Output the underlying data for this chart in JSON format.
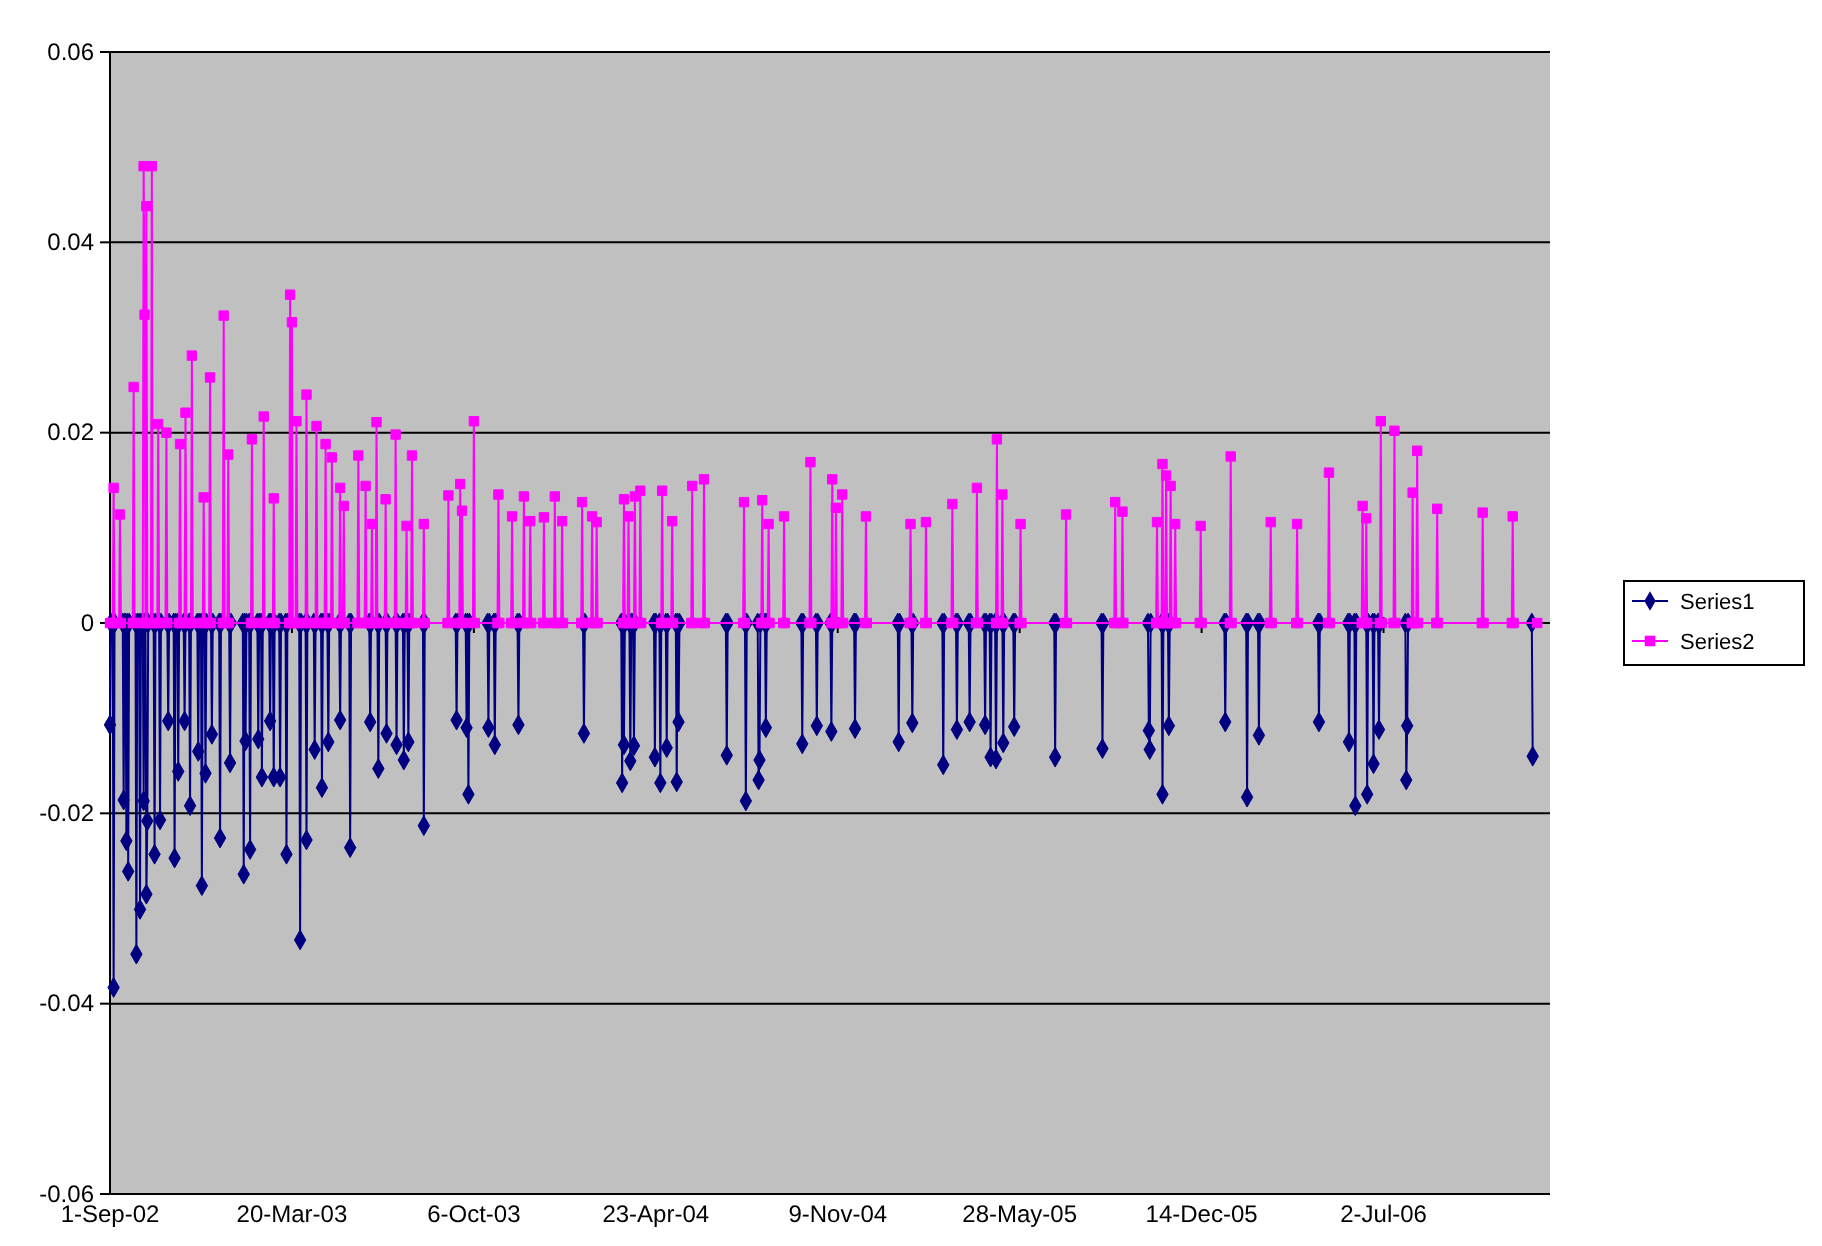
{
  "chart_data": {
    "type": "line",
    "xlim": [
      "2002-09-01",
      "2007-01-01"
    ],
    "ylim": [
      -0.06,
      0.06
    ],
    "xticks": [
      {
        "value": "2002-09-01",
        "label": "1-Sep-02"
      },
      {
        "value": "2003-03-20",
        "label": "20-Mar-03"
      },
      {
        "value": "2003-10-06",
        "label": "6-Oct-03"
      },
      {
        "value": "2004-04-23",
        "label": "23-Apr-04"
      },
      {
        "value": "2004-11-09",
        "label": "9-Nov-04"
      },
      {
        "value": "2005-05-28",
        "label": "28-May-05"
      },
      {
        "value": "2005-12-14",
        "label": "14-Dec-05"
      },
      {
        "value": "2006-07-02",
        "label": "2-Jul-06"
      }
    ],
    "yticks": [
      -0.06,
      -0.04,
      -0.02,
      0,
      0.02,
      0.04,
      0.06
    ],
    "grid": "y",
    "legend": "right",
    "series": [
      {
        "name": "Series1",
        "color": "#000080",
        "marker": "diamond",
        "x": [
          "2002-09-01",
          "2002-09-02",
          "2002-09-04",
          "2002-09-05",
          "2002-09-06",
          "2002-09-15",
          "2002-09-16",
          "2002-09-17",
          "2002-09-18",
          "2002-09-19",
          "2002-09-20",
          "2002-09-21",
          "2002-09-22",
          "2002-09-29",
          "2002-09-30",
          "2002-10-01",
          "2002-10-03",
          "2002-10-04",
          "2002-10-05",
          "2002-10-07",
          "2002-10-08",
          "2002-10-09",
          "2002-10-10",
          "2002-10-11",
          "2002-10-12",
          "2002-10-13",
          "2002-10-19",
          "2002-10-20",
          "2002-10-21",
          "2002-10-25",
          "2002-10-26",
          "2002-10-27",
          "2002-11-03",
          "2002-11-04",
          "2002-11-05",
          "2002-11-10",
          "2002-11-11",
          "2002-11-12",
          "2002-11-14",
          "2002-11-15",
          "2002-11-16",
          "2002-11-21",
          "2002-11-22",
          "2002-11-23",
          "2002-11-27",
          "2002-11-28",
          "2002-11-29",
          "2002-12-06",
          "2002-12-07",
          "2002-12-08",
          "2002-12-10",
          "2002-12-11",
          "2002-12-12",
          "2002-12-14",
          "2002-12-15",
          "2002-12-16",
          "2002-12-21",
          "2002-12-22",
          "2002-12-23",
          "2002-12-30",
          "2002-12-31",
          "2003-01-01",
          "2003-01-10",
          "2003-01-11",
          "2003-01-12",
          "2003-01-25",
          "2003-01-26",
          "2003-01-27",
          "2003-01-28",
          "2003-01-29",
          "2003-02-01",
          "2003-02-02",
          "2003-02-03",
          "2003-02-10",
          "2003-02-11",
          "2003-02-12",
          "2003-02-14",
          "2003-02-15",
          "2003-02-16",
          "2003-02-23",
          "2003-02-24",
          "2003-02-25",
          "2003-02-27",
          "2003-02-28",
          "2003-03-01",
          "2003-03-06",
          "2003-03-07",
          "2003-03-08",
          "2003-03-13",
          "2003-03-14",
          "2003-03-15",
          "2003-03-28",
          "2003-03-29",
          "2003-03-30",
          "2003-04-04",
          "2003-04-05",
          "2003-04-06",
          "2003-04-13",
          "2003-04-14",
          "2003-04-15",
          "2003-04-21",
          "2003-04-22",
          "2003-04-23",
          "2003-04-28",
          "2003-04-29",
          "2003-04-30",
          "2003-05-11",
          "2003-05-12",
          "2003-05-13",
          "2003-05-22",
          "2003-05-23",
          "2003-05-24",
          "2003-06-13",
          "2003-06-14",
          "2003-06-15",
          "2003-06-22",
          "2003-06-23",
          "2003-06-24",
          "2003-07-01",
          "2003-07-02",
          "2003-07-03",
          "2003-07-12",
          "2003-07-13",
          "2003-07-14",
          "2003-07-20",
          "2003-07-21",
          "2003-07-22",
          "2003-07-25",
          "2003-07-26",
          "2003-07-27",
          "2003-08-11",
          "2003-08-12",
          "2003-08-13",
          "2003-09-16",
          "2003-09-17",
          "2003-09-18",
          "2003-09-27",
          "2003-09-28",
          "2003-09-29",
          "2003-09-30",
          "2003-10-01",
          "2003-10-21",
          "2003-10-22",
          "2003-10-23",
          "2003-10-28",
          "2003-10-29",
          "2003-10-30",
          "2003-11-23",
          "2003-11-24",
          "2003-11-25",
          "2004-02-03",
          "2004-02-04",
          "2004-02-05",
          "2004-03-16",
          "2004-03-17",
          "2004-03-18",
          "2004-03-19",
          "2004-03-20",
          "2004-03-25",
          "2004-03-26",
          "2004-03-27",
          "2004-03-29",
          "2004-03-30",
          "2004-03-31",
          "2004-04-21",
          "2004-04-22",
          "2004-04-23",
          "2004-04-27",
          "2004-04-28",
          "2004-04-29",
          "2004-05-04",
          "2004-05-05",
          "2004-05-06",
          "2004-05-15",
          "2004-05-16",
          "2004-05-17",
          "2004-05-18",
          "2004-05-19",
          "2004-07-09",
          "2004-07-10",
          "2004-07-11",
          "2004-07-30",
          "2004-07-31",
          "2004-08-01",
          "2004-08-13",
          "2004-08-14",
          "2004-08-15",
          "2004-08-16",
          "2004-08-21",
          "2004-08-22",
          "2004-08-23",
          "2004-09-30",
          "2004-10-01",
          "2004-10-02",
          "2004-10-16",
          "2004-10-17",
          "2004-10-18",
          "2004-11-01",
          "2004-11-02",
          "2004-11-03",
          "2004-11-27",
          "2004-11-28",
          "2004-11-29",
          "2005-01-14",
          "2005-01-15",
          "2005-01-16",
          "2005-01-29",
          "2005-01-30",
          "2005-01-31",
          "2005-03-04",
          "2005-03-05",
          "2005-03-06",
          "2005-03-19",
          "2005-03-20",
          "2005-03-21",
          "2005-04-02",
          "2005-04-03",
          "2005-04-04",
          "2005-04-19",
          "2005-04-20",
          "2005-04-21",
          "2005-04-25",
          "2005-04-26",
          "2005-04-27",
          "2005-05-01",
          "2005-05-02",
          "2005-05-03",
          "2005-05-09",
          "2005-05-10",
          "2005-05-11",
          "2005-05-21",
          "2005-05-22",
          "2005-05-23",
          "2005-07-05",
          "2005-07-06",
          "2005-07-07",
          "2005-08-26",
          "2005-08-27",
          "2005-08-28",
          "2005-10-16",
          "2005-10-17",
          "2005-10-18",
          "2005-10-19",
          "2005-10-31",
          "2005-11-01",
          "2005-11-02",
          "2005-11-07",
          "2005-11-08",
          "2005-11-09",
          "2006-01-08",
          "2006-01-09",
          "2006-01-10",
          "2006-02-01",
          "2006-02-02",
          "2006-02-03",
          "2006-02-14",
          "2006-02-15",
          "2006-02-16",
          "2006-04-21",
          "2006-04-22",
          "2006-04-23",
          "2006-05-24",
          "2006-05-25",
          "2006-05-26",
          "2006-05-31",
          "2006-06-01",
          "2006-06-02",
          "2006-06-13",
          "2006-06-14",
          "2006-06-15",
          "2006-06-20",
          "2006-06-21",
          "2006-06-22",
          "2006-06-26",
          "2006-06-27",
          "2006-06-28",
          "2006-07-26",
          "2006-07-27",
          "2006-07-28",
          "2006-07-29",
          "2006-12-12",
          "2006-12-13"
        ],
        "values": [
          -0.0107,
          0,
          0,
          -0.0383,
          0,
          0,
          -0.0186,
          0,
          0,
          -0.0229,
          0,
          -0.0261,
          0,
          0,
          -0.0348,
          0,
          0,
          -0.0301,
          0,
          0,
          -0.0187,
          0,
          0,
          -0.0285,
          -0.0208,
          0,
          0,
          -0.0243,
          0,
          0,
          -0.0207,
          0,
          0,
          -0.0103,
          0,
          0,
          -0.0247,
          0,
          0,
          -0.0156,
          0,
          0,
          -0.0103,
          0,
          0,
          -0.0192,
          0,
          0,
          -0.0135,
          0,
          0,
          -0.0276,
          0,
          0,
          -0.0158,
          0,
          0,
          -0.0117,
          0,
          0,
          -0.0226,
          0,
          0,
          -0.0147,
          0,
          0,
          -0.0264,
          0,
          -0.0124,
          0,
          0,
          -0.0238,
          0,
          0,
          -0.0122,
          0,
          0,
          -0.0162,
          0,
          0,
          -0.0103,
          0,
          0,
          -0.0162,
          0,
          0,
          -0.0162,
          0,
          0,
          -0.0243,
          0,
          0,
          -0.0333,
          0,
          0,
          -0.0228,
          0,
          0,
          -0.0133,
          0,
          0,
          -0.0173,
          0,
          0,
          -0.0125,
          0,
          0,
          -0.0102,
          0,
          0,
          -0.0236,
          0,
          0,
          -0.0104,
          0,
          0,
          -0.0153,
          0,
          0,
          -0.0116,
          0,
          0,
          -0.0128,
          0,
          0,
          -0.0144,
          0,
          0,
          -0.0125,
          0,
          0,
          -0.0213,
          0,
          0,
          -0.0102,
          0,
          0,
          -0.011,
          0,
          -0.018,
          0,
          0,
          -0.011,
          0,
          0,
          -0.0128,
          0,
          0,
          -0.0107,
          0,
          0,
          -0.0116,
          0,
          0,
          -0.0168,
          0,
          -0.0128,
          0,
          0,
          -0.0145,
          0,
          0,
          -0.0129,
          0,
          0,
          -0.0141,
          0,
          0,
          -0.0168,
          0,
          0,
          -0.0131,
          0,
          0,
          -0.0167,
          0,
          -0.0104,
          0,
          0,
          -0.0139,
          0,
          0,
          -0.0187,
          0,
          0,
          -0.0165,
          -0.0144,
          0,
          0,
          -0.011,
          0,
          0,
          -0.0127,
          0,
          0,
          -0.0108,
          0,
          0,
          -0.0114,
          0,
          0,
          -0.0111,
          0,
          0,
          -0.0125,
          0,
          0,
          -0.0105,
          0,
          0,
          -0.0149,
          0,
          0,
          -0.0112,
          0,
          0,
          -0.0104,
          0,
          0,
          -0.0107,
          0,
          0,
          -0.0141,
          0,
          0,
          -0.0143,
          0,
          0,
          -0.0126,
          0,
          0,
          -0.0109,
          0,
          0,
          -0.0141,
          0,
          0,
          -0.0132,
          0,
          0,
          -0.0113,
          -0.0133,
          0,
          0,
          -0.018,
          0,
          0,
          -0.0108,
          0,
          0,
          -0.0104,
          0,
          0,
          -0.0183,
          0,
          0,
          -0.0118,
          0,
          0,
          -0.0104,
          0,
          0,
          -0.0125,
          0,
          0,
          -0.0192,
          0,
          0,
          -0.018,
          0,
          0,
          -0.0148,
          0,
          0,
          -0.0112,
          0,
          0,
          -0.0165,
          -0.0108,
          0,
          0,
          -0.014
        ]
      },
      {
        "name": "Series2",
        "color": "#ff00ff",
        "marker": "square",
        "x": [
          "2002-09-01",
          "2002-09-04",
          "2002-09-05",
          "2002-09-06",
          "2002-09-11",
          "2002-09-12",
          "2002-09-13",
          "2002-09-26",
          "2002-09-27",
          "2002-09-28",
          "2002-10-07",
          "2002-10-08",
          "2002-10-09",
          "2002-10-10",
          "2002-10-11",
          "2002-10-12",
          "2002-10-16",
          "2002-10-17",
          "2002-10-18",
          "2002-10-23",
          "2002-10-24",
          "2002-10-25",
          "2002-11-01",
          "2002-11-02",
          "2002-11-03",
          "2002-11-16",
          "2002-11-17",
          "2002-11-18",
          "2002-11-22",
          "2002-11-23",
          "2002-11-24",
          "2002-11-29",
          "2002-11-30",
          "2002-12-01",
          "2002-12-12",
          "2002-12-13",
          "2002-12-14",
          "2002-12-19",
          "2002-12-20",
          "2002-12-21",
          "2003-01-03",
          "2003-01-04",
          "2003-01-05",
          "2003-01-08",
          "2003-01-09",
          "2003-01-10",
          "2003-02-03",
          "2003-02-04",
          "2003-02-05",
          "2003-02-16",
          "2003-02-17",
          "2003-02-18",
          "2003-02-27",
          "2003-02-28",
          "2003-03-01",
          "2003-03-17",
          "2003-03-18",
          "2003-03-19",
          "2003-03-20",
          "2003-03-21",
          "2003-03-24",
          "2003-03-25",
          "2003-03-26",
          "2003-04-04",
          "2003-04-05",
          "2003-04-06",
          "2003-04-15",
          "2003-04-16",
          "2003-04-17",
          "2003-04-25",
          "2003-04-26",
          "2003-04-27",
          "2003-05-02",
          "2003-05-03",
          "2003-05-04",
          "2003-05-11",
          "2003-05-12",
          "2003-05-13",
          "2003-05-15",
          "2003-05-16",
          "2003-05-17",
          "2003-05-31",
          "2003-06-01",
          "2003-06-02",
          "2003-06-08",
          "2003-06-09",
          "2003-06-10",
          "2003-06-15",
          "2003-06-16",
          "2003-06-17",
          "2003-06-20",
          "2003-06-21",
          "2003-06-22",
          "2003-06-30",
          "2003-07-01",
          "2003-07-02",
          "2003-07-11",
          "2003-07-12",
          "2003-07-13",
          "2003-07-23",
          "2003-07-24",
          "2003-07-25",
          "2003-07-29",
          "2003-07-30",
          "2003-07-31",
          "2003-08-11",
          "2003-08-12",
          "2003-08-13",
          "2003-09-07",
          "2003-09-08",
          "2003-09-09",
          "2003-09-20",
          "2003-09-21",
          "2003-09-22",
          "2003-09-23",
          "2003-09-24",
          "2003-10-05",
          "2003-10-06",
          "2003-10-07",
          "2003-11-01",
          "2003-11-02",
          "2003-11-03",
          "2003-11-16",
          "2003-11-17",
          "2003-11-18",
          "2003-11-29",
          "2003-11-30",
          "2003-12-01",
          "2003-12-06",
          "2003-12-07",
          "2003-12-08",
          "2003-12-21",
          "2003-12-22",
          "2003-12-23",
          "2004-01-02",
          "2004-01-03",
          "2004-01-04",
          "2004-01-10",
          "2004-01-11",
          "2004-01-12",
          "2004-02-01",
          "2004-02-02",
          "2004-02-03",
          "2004-02-12",
          "2004-02-13",
          "2004-02-14",
          "2004-02-17",
          "2004-02-18",
          "2004-02-19",
          "2004-03-18",
          "2004-03-19",
          "2004-03-20",
          "2004-03-23",
          "2004-03-24",
          "2004-03-25",
          "2004-03-30",
          "2004-03-31",
          "2004-04-01",
          "2004-04-05",
          "2004-04-06",
          "2004-04-07",
          "2004-04-29",
          "2004-04-30",
          "2004-05-01",
          "2004-05-10",
          "2004-05-11",
          "2004-05-12",
          "2004-06-01",
          "2004-06-02",
          "2004-06-03",
          "2004-06-14",
          "2004-06-15",
          "2004-06-16",
          "2004-07-28",
          "2004-07-29",
          "2004-07-30",
          "2004-08-17",
          "2004-08-18",
          "2004-08-19",
          "2004-08-24",
          "2004-08-25",
          "2004-08-26",
          "2004-09-10",
          "2004-09-11",
          "2004-09-12",
          "2004-10-09",
          "2004-10-10",
          "2004-10-11",
          "2004-11-02",
          "2004-11-03",
          "2004-11-04",
          "2004-11-06",
          "2004-11-07",
          "2004-11-08",
          "2004-11-13",
          "2004-11-14",
          "2004-11-15",
          "2004-12-09",
          "2004-12-10",
          "2004-12-11",
          "2005-01-27",
          "2005-01-28",
          "2005-01-29",
          "2005-02-13",
          "2005-02-14",
          "2005-02-15",
          "2005-03-14",
          "2005-03-15",
          "2005-03-16",
          "2005-04-10",
          "2005-04-11",
          "2005-04-12",
          "2005-05-02",
          "2005-05-03",
          "2005-05-04",
          "2005-05-08",
          "2005-05-09",
          "2005-05-10",
          "2005-05-28",
          "2005-05-29",
          "2005-05-30",
          "2005-07-17",
          "2005-07-18",
          "2005-07-19",
          "2005-09-09",
          "2005-09-10",
          "2005-09-11",
          "2005-09-17",
          "2005-09-18",
          "2005-09-19",
          "2005-10-25",
          "2005-10-26",
          "2005-10-27",
          "2005-10-31",
          "2005-11-01",
          "2005-11-02",
          "2005-11-04",
          "2005-11-05",
          "2005-11-06",
          "2005-11-09",
          "2005-11-10",
          "2005-11-11",
          "2005-11-14",
          "2005-11-15",
          "2005-11-16",
          "2005-12-12",
          "2005-12-13",
          "2005-12-14",
          "2006-01-14",
          "2006-01-15",
          "2006-01-16",
          "2006-02-27",
          "2006-02-28",
          "2006-03-01",
          "2006-03-28",
          "2006-03-29",
          "2006-03-30",
          "2006-05-02",
          "2006-05-03",
          "2006-05-04",
          "2006-06-08",
          "2006-06-09",
          "2006-06-10",
          "2006-06-12",
          "2006-06-13",
          "2006-06-14",
          "2006-06-28",
          "2006-06-29",
          "2006-06-30",
          "2006-07-13",
          "2006-07-14",
          "2006-07-15",
          "2006-08-02",
          "2006-08-03",
          "2006-08-04",
          "2006-08-07",
          "2006-08-08",
          "2006-08-09",
          "2006-08-29",
          "2006-08-30",
          "2006-08-31",
          "2006-10-18",
          "2006-10-19",
          "2006-10-20",
          "2006-11-20",
          "2006-11-21",
          "2006-11-22",
          "2006-12-18"
        ],
        "values": [
          0,
          0,
          0.0142,
          0,
          0,
          0.0114,
          0,
          0,
          0.0248,
          0,
          0,
          0.048,
          0.0324,
          0,
          0.0438,
          0,
          0,
          0.048,
          0,
          0,
          0.0209,
          0,
          0,
          0.02,
          0,
          0,
          0.0188,
          0,
          0,
          0.0221,
          0,
          0,
          0.0281,
          0,
          0,
          0.0132,
          0,
          0,
          0.0258,
          0,
          0,
          0.0323,
          0,
          0,
          0.0177,
          0,
          0,
          0.0193,
          0,
          0,
          0.0217,
          0,
          0,
          0.0131,
          0,
          0,
          0.0345,
          0,
          0.0316,
          0,
          0,
          0.0212,
          0,
          0,
          0.024,
          0,
          0,
          0.0207,
          0,
          0,
          0.0188,
          0,
          0,
          0.0174,
          0,
          0,
          0.0142,
          0,
          0,
          0.0123,
          0,
          0,
          0.0176,
          0,
          0,
          0.0144,
          0,
          0,
          0.0104,
          0,
          0,
          0.0211,
          0,
          0,
          0.013,
          0,
          0,
          0.0198,
          0,
          0,
          0.0102,
          0,
          0,
          0.0176,
          0,
          0,
          0.0104,
          0,
          0,
          0.0134,
          0,
          0,
          0.0146,
          0,
          0.0118,
          0,
          0,
          0.0212,
          0,
          0,
          0.0135,
          0,
          0,
          0.0112,
          0,
          0,
          0.0133,
          0,
          0,
          0.0107,
          0,
          0,
          0.0111,
          0,
          0,
          0.0133,
          0,
          0,
          0.0107,
          0,
          0,
          0.0127,
          0,
          0,
          0.0112,
          0,
          0,
          0.0106,
          0,
          0,
          0.013,
          0,
          0,
          0.0112,
          0,
          0,
          0.0133,
          0,
          0,
          0.0139,
          0,
          0,
          0.0139,
          0,
          0,
          0.0107,
          0,
          0,
          0.0144,
          0,
          0,
          0.0151,
          0,
          0,
          0.0127,
          0,
          0,
          0.0129,
          0,
          0,
          0.0104,
          0,
          0,
          0.0112,
          0,
          0,
          0.0169,
          0,
          0,
          0.0151,
          0,
          0,
          0.0121,
          0,
          0,
          0.0135,
          0,
          0,
          0.0112,
          0,
          0,
          0.0104,
          0,
          0,
          0.0106,
          0,
          0,
          0.0125,
          0,
          0,
          0.0142,
          0,
          0,
          0.0193,
          0,
          0,
          0.0135,
          0,
          0,
          0.0104,
          0,
          0,
          0.0114,
          0,
          0,
          0.0127,
          0,
          0,
          0.0117,
          0,
          0,
          0.0106,
          0,
          0,
          0.0167,
          0,
          0,
          0.0155,
          0,
          0,
          0.0144,
          0,
          0,
          0.0104,
          0,
          0,
          0.0102,
          0,
          0,
          0.0175,
          0,
          0,
          0.0106,
          0,
          0,
          0.0104,
          0,
          0,
          0.0158,
          0,
          0,
          0.0123,
          0,
          0,
          0.011,
          0,
          0,
          0.0212,
          0,
          0,
          0.0202,
          0,
          0,
          0.0137,
          0,
          0,
          0.0181,
          0,
          0,
          0.012,
          0,
          0,
          0.0116,
          0,
          0,
          0.0112,
          0,
          0
        ]
      }
    ]
  }
}
